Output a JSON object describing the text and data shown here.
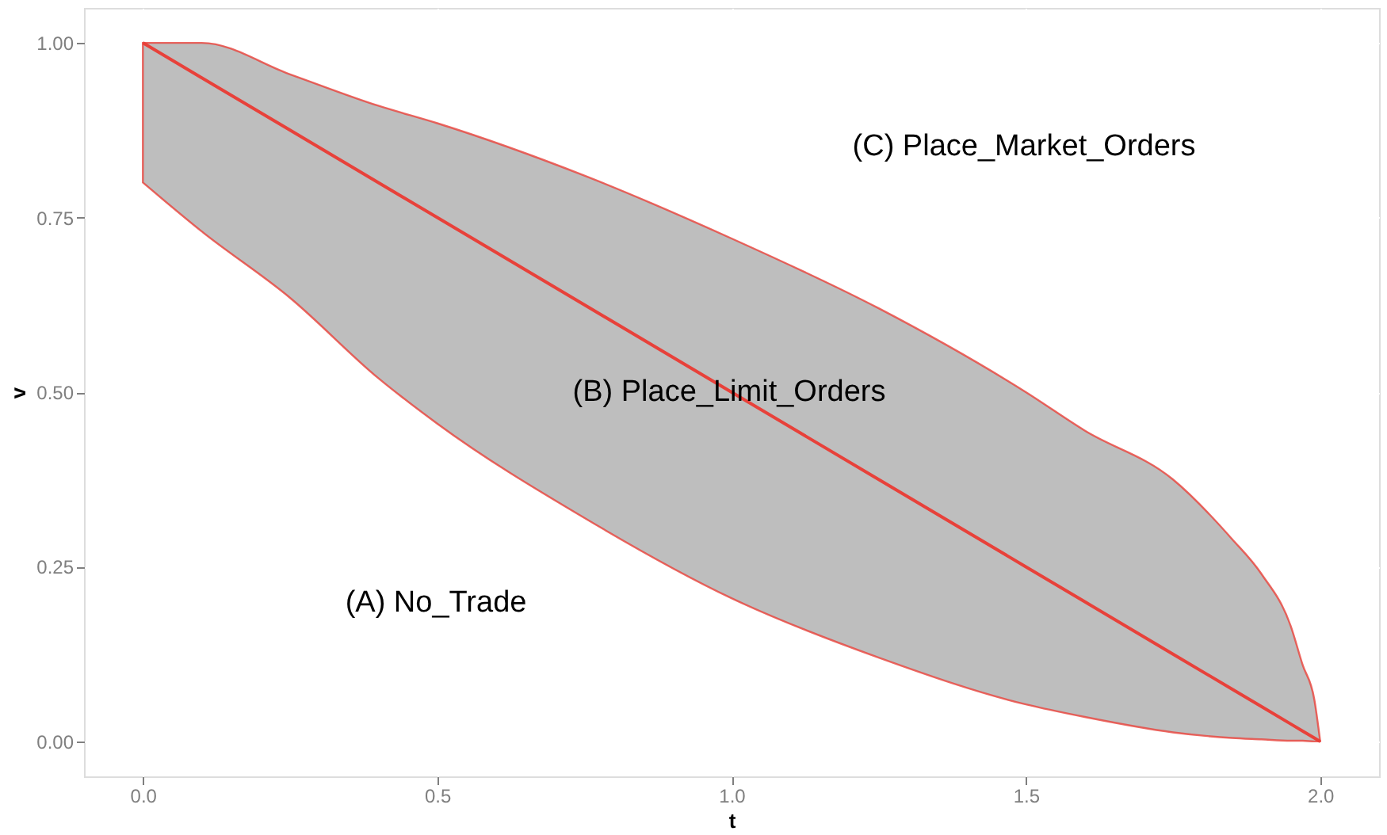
{
  "chart_data": {
    "type": "line",
    "xlabel": "t",
    "ylabel": "v",
    "xlim": [
      -0.1,
      2.1
    ],
    "ylim": [
      -0.05,
      1.05
    ],
    "xticks": [
      {
        "value": 0,
        "label": "0.0"
      },
      0.5,
      {
        "value": 1,
        "label": "1.0"
      },
      1.5,
      {
        "value": 2,
        "label": "2.0"
      }
    ],
    "yticks": [
      {
        "value": 0,
        "label": "0.00"
      },
      {
        "value": 0.25,
        "label": "0.25"
      },
      {
        "value": 0.5,
        "label": "0.50"
      },
      {
        "value": 0.75,
        "label": "0.75"
      },
      {
        "value": 1,
        "label": "1.00"
      }
    ],
    "grid": true,
    "series": [
      {
        "color": "#e8413a",
        "x": [
          0,
          0.1,
          0.25,
          0.4,
          0.5,
          0.75,
          1.0,
          1.25,
          1.5,
          1.6,
          1.75,
          1.85,
          1.9,
          1.95,
          1.97,
          1.99,
          2.0
        ],
        "values": [
          1.0,
          0.95,
          0.875,
          0.8,
          0.75,
          0.625,
          0.5,
          0.375,
          0.25,
          0.2,
          0.125,
          0.075,
          0.05,
          0.025,
          0.015,
          0.005,
          0.0
        ],
        "lower": [
          0.8,
          0.73,
          0.635,
          0.52,
          0.455,
          0.32,
          0.205,
          0.12,
          0.053,
          0.035,
          0.013,
          0.005,
          0.003,
          0.001,
          0.001,
          0.0,
          0.0
        ],
        "upper": [
          1.0,
          1.0,
          0.955,
          0.91,
          0.885,
          0.81,
          0.72,
          0.62,
          0.5,
          0.445,
          0.375,
          0.29,
          0.24,
          0.165,
          0.11,
          0.06,
          0.0
        ]
      }
    ],
    "annotations": [
      "(A) No_Trade",
      "(B) Place_Limit_Orders",
      "(C) Place_Market_Orders"
    ]
  }
}
